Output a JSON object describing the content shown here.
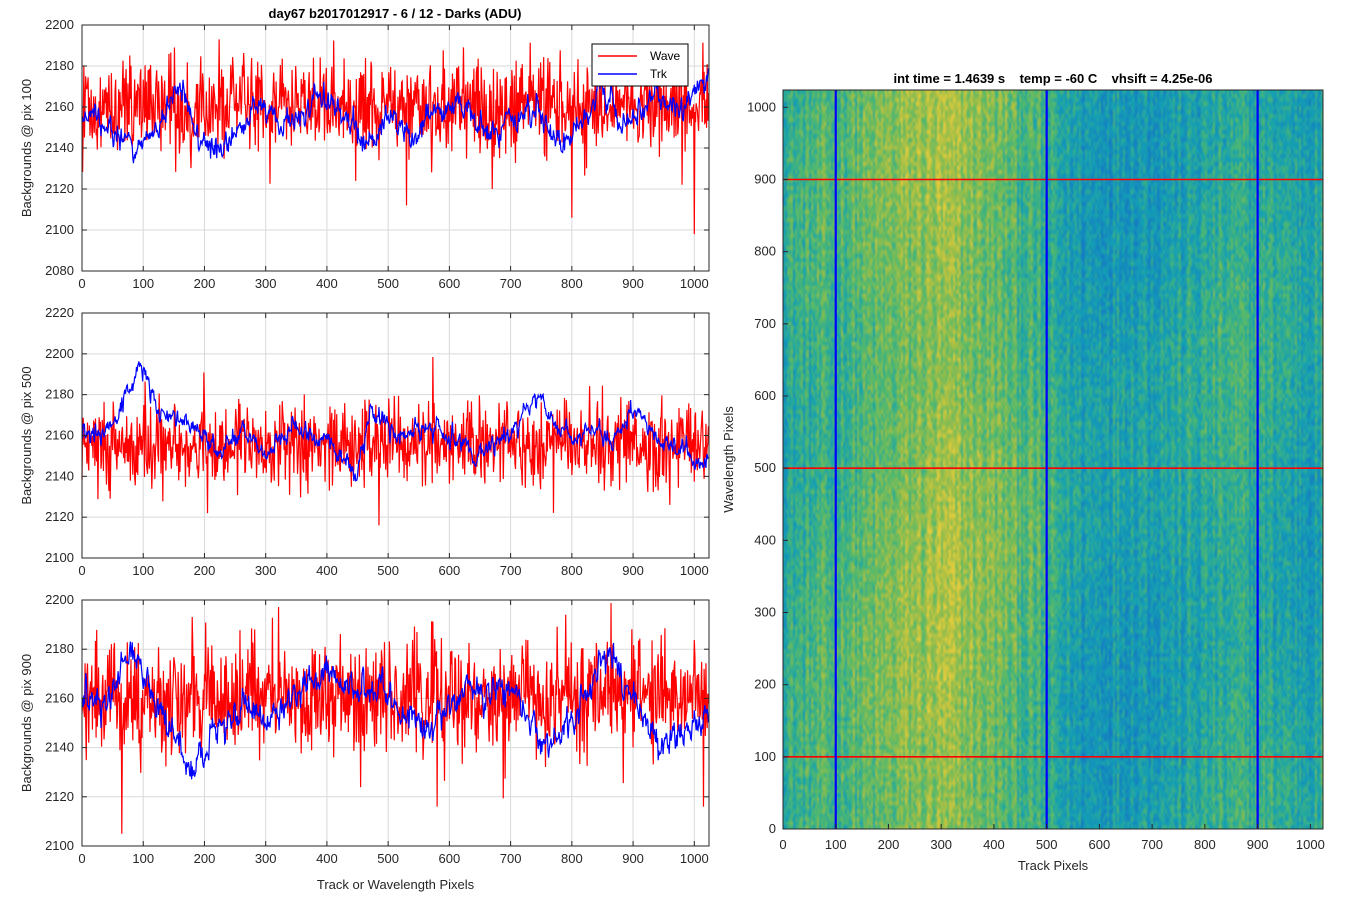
{
  "figure": {
    "title": "day67 b2017012917 - 6 / 12 - Darks (ADU)"
  },
  "colors": {
    "wave": "#ff0000",
    "trk": "#0000ff",
    "grid": "#d9d9d9",
    "axis": "#262626"
  },
  "chart_data": [
    {
      "id": "plot1",
      "type": "line",
      "title": "day67 b2017012917 - 6 / 12 - Darks (ADU)",
      "xlabel": "",
      "ylabel": "Backgrounds @ pix 100",
      "xlim": [
        0,
        1024
      ],
      "ylim": [
        2080,
        2200
      ],
      "xticks": [
        0,
        100,
        200,
        300,
        400,
        500,
        600,
        700,
        800,
        900,
        1000
      ],
      "yticks": [
        2080,
        2100,
        2120,
        2140,
        2160,
        2180,
        2200
      ],
      "grid": true,
      "legend": {
        "position": "top-right",
        "entries": [
          "Wave",
          "Trk"
        ]
      },
      "series": [
        {
          "name": "Wave",
          "color": "#ff0000",
          "mean": 2160,
          "noise": 12,
          "n": 1024,
          "spikes": [
            [
              1000,
              2098
            ],
            [
              800,
              2106
            ],
            [
              530,
              2112
            ],
            [
              670,
              2120
            ]
          ]
        },
        {
          "name": "Trk",
          "color": "#0000ff",
          "mean": 2155,
          "noise": 5,
          "n": 1024,
          "knots": [
            [
              0,
              2160
            ],
            [
              40,
              2150
            ],
            [
              90,
              2142
            ],
            [
              130,
              2152
            ],
            [
              160,
              2170
            ],
            [
              190,
              2145
            ],
            [
              230,
              2138
            ],
            [
              260,
              2150
            ],
            [
              290,
              2160
            ],
            [
              330,
              2150
            ],
            [
              380,
              2165
            ],
            [
              420,
              2160
            ],
            [
              460,
              2140
            ],
            [
              500,
              2155
            ],
            [
              540,
              2145
            ],
            [
              580,
              2160
            ],
            [
              620,
              2160
            ],
            [
              660,
              2145
            ],
            [
              700,
              2152
            ],
            [
              740,
              2162
            ],
            [
              770,
              2145
            ],
            [
              820,
              2155
            ],
            [
              850,
              2170
            ],
            [
              880,
              2150
            ],
            [
              940,
              2165
            ],
            [
              980,
              2158
            ],
            [
              1024,
              2175
            ]
          ]
        }
      ]
    },
    {
      "id": "plot2",
      "type": "line",
      "xlabel": "",
      "ylabel": "Backgrounds @ pix 500",
      "xlim": [
        0,
        1024
      ],
      "ylim": [
        2100,
        2220
      ],
      "xticks": [
        0,
        100,
        200,
        300,
        400,
        500,
        600,
        700,
        800,
        900,
        1000
      ],
      "yticks": [
        2100,
        2120,
        2140,
        2160,
        2180,
        2200,
        2220
      ],
      "grid": true,
      "series": [
        {
          "name": "Wave",
          "color": "#ff0000",
          "mean": 2155,
          "noise": 11,
          "n": 1024,
          "spikes": [
            [
              485,
              2116
            ],
            [
              205,
              2122
            ],
            [
              960,
              2126
            ]
          ]
        },
        {
          "name": "Trk",
          "color": "#0000ff",
          "mean": 2160,
          "noise": 4,
          "n": 1024,
          "knots": [
            [
              0,
              2160
            ],
            [
              50,
              2165
            ],
            [
              95,
              2195
            ],
            [
              130,
              2170
            ],
            [
              180,
              2165
            ],
            [
              230,
              2150
            ],
            [
              260,
              2165
            ],
            [
              300,
              2150
            ],
            [
              350,
              2165
            ],
            [
              400,
              2158
            ],
            [
              450,
              2140
            ],
            [
              470,
              2172
            ],
            [
              520,
              2160
            ],
            [
              580,
              2165
            ],
            [
              640,
              2150
            ],
            [
              700,
              2160
            ],
            [
              740,
              2178
            ],
            [
              790,
              2160
            ],
            [
              840,
              2163
            ],
            [
              870,
              2155
            ],
            [
              900,
              2175
            ],
            [
              940,
              2160
            ],
            [
              1000,
              2148
            ],
            [
              1024,
              2146
            ]
          ]
        }
      ]
    },
    {
      "id": "plot3",
      "type": "line",
      "xlabel": "Track or Wavelength Pixels",
      "ylabel": "Backgrounds @ pix 900",
      "xlim": [
        0,
        1024
      ],
      "ylim": [
        2100,
        2200
      ],
      "xticks": [
        0,
        100,
        200,
        300,
        400,
        500,
        600,
        700,
        800,
        900,
        1000
      ],
      "yticks": [
        2100,
        2120,
        2140,
        2160,
        2180,
        2200
      ],
      "grid": true,
      "series": [
        {
          "name": "Wave",
          "color": "#ff0000",
          "mean": 2160,
          "noise": 12,
          "n": 1024,
          "spikes": [
            [
              65,
              2105
            ],
            [
              580,
              2116
            ],
            [
              1015,
              2116
            ]
          ]
        },
        {
          "name": "Trk",
          "color": "#0000ff",
          "mean": 2158,
          "noise": 5,
          "n": 1024,
          "knots": [
            [
              0,
              2155
            ],
            [
              40,
              2160
            ],
            [
              80,
              2180
            ],
            [
              120,
              2158
            ],
            [
              180,
              2130
            ],
            [
              220,
              2148
            ],
            [
              270,
              2155
            ],
            [
              300,
              2150
            ],
            [
              350,
              2160
            ],
            [
              400,
              2172
            ],
            [
              450,
              2162
            ],
            [
              490,
              2165
            ],
            [
              530,
              2150
            ],
            [
              590,
              2155
            ],
            [
              640,
              2163
            ],
            [
              700,
              2165
            ],
            [
              760,
              2140
            ],
            [
              820,
              2160
            ],
            [
              860,
              2180
            ],
            [
              900,
              2158
            ],
            [
              950,
              2140
            ],
            [
              1000,
              2150
            ],
            [
              1024,
              2155
            ]
          ]
        }
      ]
    },
    {
      "id": "image",
      "type": "heatmap",
      "title": "int time = 1.4639 s    temp = -60 C    vhsift = 4.25e-06",
      "xlabel": "Track Pixels",
      "ylabel": "Wavelength Pixels",
      "xlim": [
        0,
        1024
      ],
      "ylim": [
        0,
        1024
      ],
      "xticks": [
        0,
        100,
        200,
        300,
        400,
        500,
        600,
        700,
        800,
        900,
        1000
      ],
      "yticks": [
        0,
        100,
        200,
        300,
        400,
        500,
        600,
        700,
        800,
        900,
        1000
      ],
      "colormap": "parula",
      "hlines": [
        100,
        500,
        900
      ],
      "vlines": [
        100,
        500,
        900
      ],
      "hline_color": "#ff0000",
      "vline_color": "#0000ff"
    }
  ]
}
